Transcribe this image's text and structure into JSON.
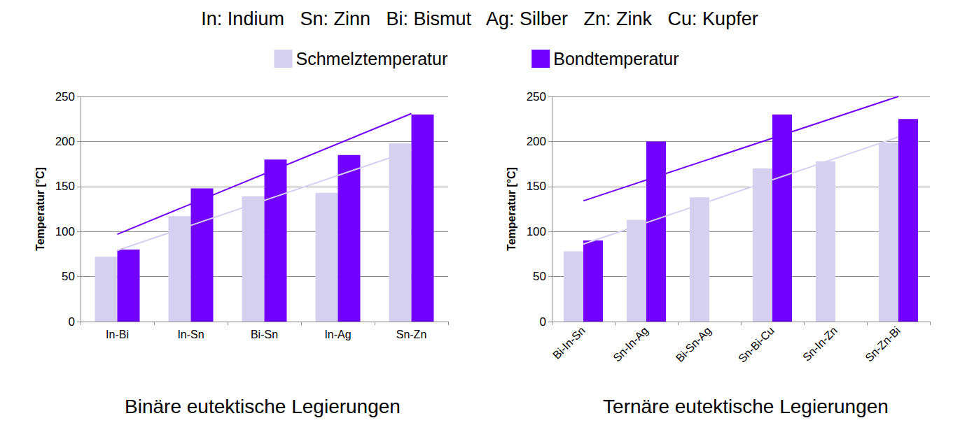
{
  "title": "In: Indium   Sn: Zinn   Bi: Bismut   Ag: Silber   Zn: Zink   Cu: Kupfer",
  "chart_data": [
    {
      "type": "bar",
      "title": "Binäre eutektische Legierungen",
      "y_label": "Temperatur [°C]",
      "categories": [
        "In-Bi",
        "In-Sn",
        "Bi-Sn",
        "In-Ag",
        "Sn-Zn"
      ],
      "series": [
        {
          "name": "Schmelztemperatur",
          "color": "#d6d0f0",
          "values": [
            72,
            117,
            139,
            143,
            198
          ]
        },
        {
          "name": "Bondtemperatur",
          "color": "#7200ff",
          "values": [
            80,
            148,
            180,
            185,
            230
          ]
        },
        {
          "type": "line",
          "color": "#d6d0f0",
          "values": [
            79,
            null,
            null,
            null,
            190
          ]
        },
        {
          "type": "line",
          "color": "#7200ff",
          "values": [
            97,
            null,
            null,
            null,
            231
          ]
        }
      ],
      "ylim": [
        0,
        250
      ],
      "yticks": [
        0,
        50,
        100,
        150,
        200,
        250
      ],
      "grid": true,
      "legend": "top"
    },
    {
      "type": "bar",
      "title": "Ternäre eutektische Legierungen",
      "y_label": "Temperatur [°C]",
      "categories": [
        "Bi-In-Sn",
        "Sn-In-Ag",
        "Bi-Sn-Ag",
        "Sn-Bi-Cu",
        "Sn-In-Zn",
        "Sn-Zn-Bi"
      ],
      "series": [
        {
          "name": "Schmelztemperatur",
          "color": "#d6d0f0",
          "values": [
            78,
            113,
            138,
            170,
            178,
            199
          ]
        },
        {
          "name": "Bondtemperatur",
          "color": "#7200ff",
          "values": [
            90,
            200,
            null,
            230,
            null,
            225
          ]
        },
        {
          "type": "line",
          "color": "#d6d0f0",
          "values": [
            86,
            null,
            null,
            null,
            null,
            205
          ]
        },
        {
          "type": "line",
          "color": "#7200ff",
          "values": [
            134,
            null,
            null,
            null,
            null,
            250
          ]
        }
      ],
      "ylim": [
        0,
        250
      ],
      "yticks": [
        0,
        50,
        100,
        150,
        200,
        250
      ],
      "grid": true,
      "legend": "top"
    }
  ]
}
